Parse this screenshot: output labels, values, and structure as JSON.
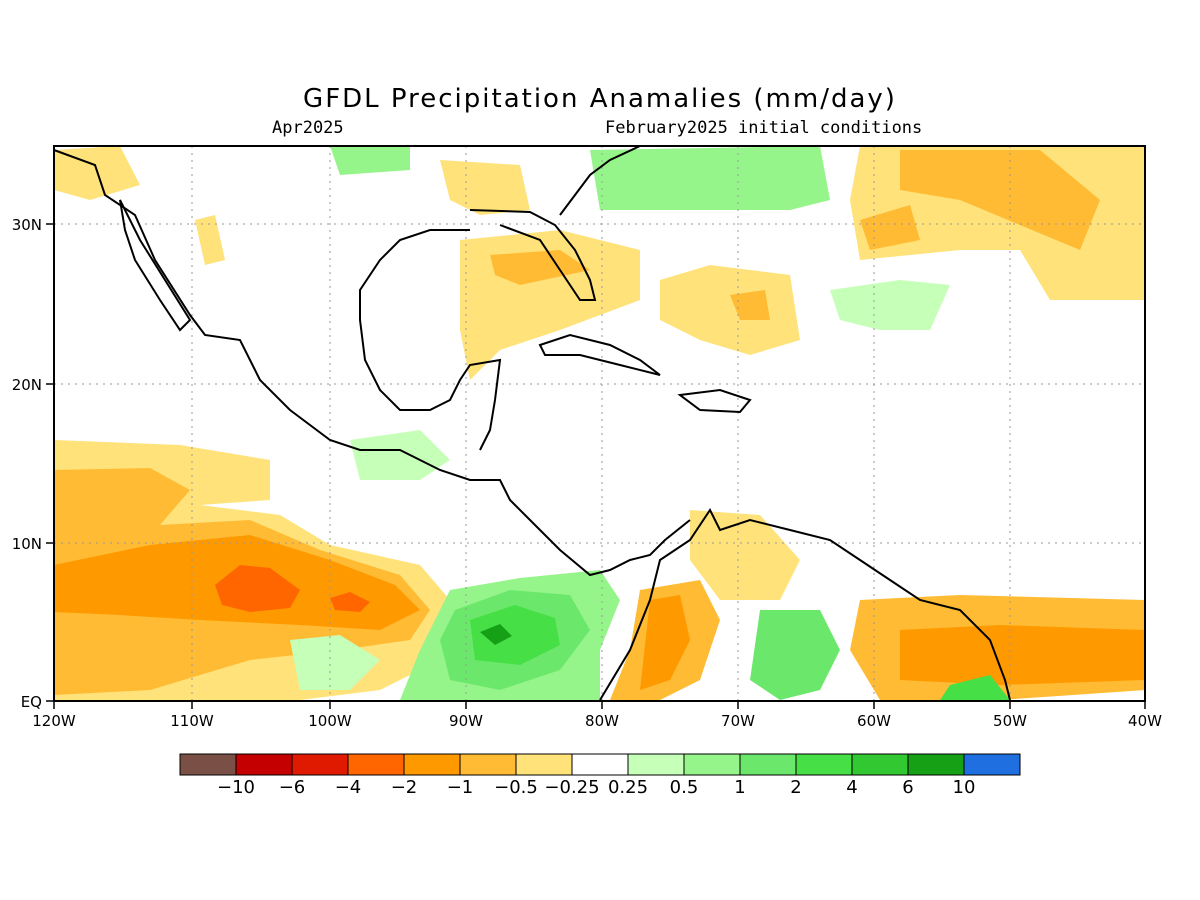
{
  "title": "GFDL Precipitation Anamalies (mm/day)",
  "subtitle_left": "Apr2025",
  "subtitle_right": "February2025 initial conditions",
  "map": {
    "lon_range": [
      -120,
      -40
    ],
    "lat_range": [
      0,
      35
    ],
    "grid": true,
    "x_ticks": [
      "120W",
      "110W",
      "100W",
      "90W",
      "80W",
      "70W",
      "60W",
      "50W",
      "40W"
    ],
    "y_ticks": [
      "EQ",
      "10N",
      "20N",
      "30N"
    ]
  },
  "colorbar": {
    "colors": [
      "#7a4f45",
      "#c40000",
      "#e01a00",
      "#ff6600",
      "#ff9900",
      "#ffbb33",
      "#ffe27a",
      "#ffffff",
      "#c6ffb8",
      "#96f58a",
      "#6be86b",
      "#46e046",
      "#32c832",
      "#16a016",
      "#1f6fe0"
    ],
    "labels": [
      "−10",
      "−6",
      "−4",
      "−2",
      "−1",
      "−0.5",
      "−0.25",
      "0.25",
      "0.5",
      "1",
      "2",
      "4",
      "6",
      "10"
    ]
  }
}
